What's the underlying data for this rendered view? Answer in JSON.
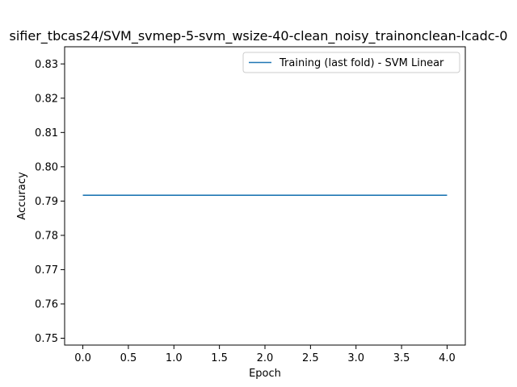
{
  "chart_data": {
    "type": "line",
    "title": "sifier_tbcas24/SVM_svmep-5-svm_wsize-40-clean_noisy_trainonclean-lcadc-0",
    "xlabel": "Epoch",
    "ylabel": "Accuracy",
    "xlim": [
      -0.2,
      4.2
    ],
    "ylim": [
      0.748,
      0.835
    ],
    "xticks": [
      0.0,
      0.5,
      1.0,
      1.5,
      2.0,
      2.5,
      3.0,
      3.5,
      4.0
    ],
    "xtick_labels": [
      "0.0",
      "0.5",
      "1.0",
      "1.5",
      "2.0",
      "2.5",
      "3.0",
      "3.5",
      "4.0"
    ],
    "yticks": [
      0.75,
      0.76,
      0.77,
      0.78,
      0.79,
      0.8,
      0.81,
      0.82,
      0.83
    ],
    "ytick_labels": [
      "0.75",
      "0.76",
      "0.77",
      "0.78",
      "0.79",
      "0.80",
      "0.81",
      "0.82",
      "0.83"
    ],
    "grid": false,
    "legend_position": "top-right",
    "series": [
      {
        "name": "Training (last fold) - SVM Linear",
        "color": "#1f77b4",
        "x": [
          0,
          1,
          2,
          3,
          4
        ],
        "y": [
          0.7917,
          0.7917,
          0.7917,
          0.7917,
          0.7917
        ]
      }
    ]
  }
}
